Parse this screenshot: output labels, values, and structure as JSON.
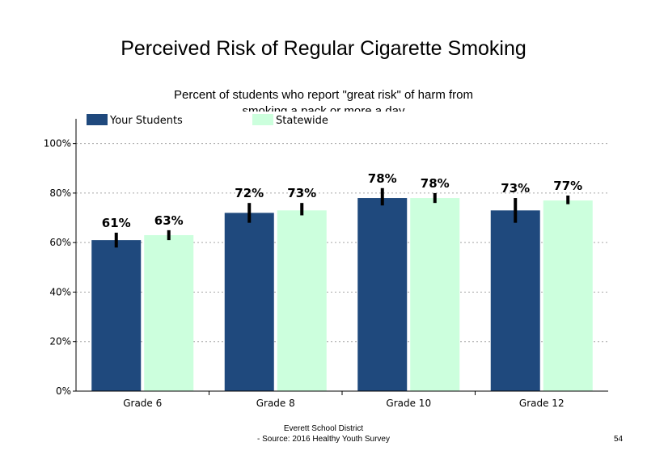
{
  "chart_data": {
    "type": "bar",
    "title": "Perceived Risk of Regular Cigarette Smoking",
    "subtitle": "Percent of students who report \"great risk\" of harm from smoking a pack or more a day",
    "categories": [
      "Grade 6",
      "Grade 8",
      "Grade 10",
      "Grade 12"
    ],
    "series": [
      {
        "name": "Your Students",
        "values": [
          61,
          72,
          78,
          73
        ],
        "labels": [
          "61%",
          "72%",
          "78%",
          "73%"
        ],
        "err_low": [
          58,
          68,
          75,
          68
        ],
        "err_high": [
          64,
          76,
          82,
          78
        ],
        "color": "#1f497d"
      },
      {
        "name": "Statewide",
        "values": [
          63,
          73,
          78,
          77
        ],
        "labels": [
          "63%",
          "73%",
          "78%",
          "77%"
        ],
        "err_low": [
          61,
          71,
          76,
          75.5
        ],
        "err_high": [
          65,
          76,
          80,
          79
        ],
        "color": "#ccffdd"
      }
    ],
    "ylim": [
      0,
      110
    ],
    "yticks": [
      0,
      20,
      40,
      60,
      80,
      100
    ],
    "ytick_labels": [
      "0%",
      "20%",
      "40%",
      "60%",
      "80%",
      "100%"
    ],
    "grid": true,
    "legend_position": "top-left"
  },
  "footer": {
    "line1": "Everett School District",
    "line2": "- Source: 2016 Healthy  Youth Survey",
    "page_number": "54"
  }
}
